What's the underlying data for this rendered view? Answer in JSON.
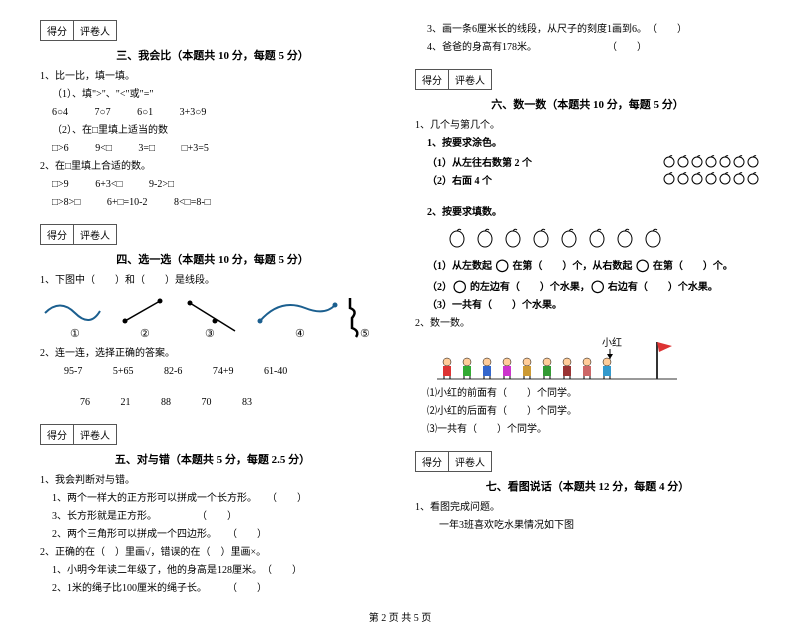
{
  "scoreLabels": {
    "score": "得分",
    "grader": "评卷人"
  },
  "section3": {
    "title": "三、我会比（本题共 10 分，每题 5 分）",
    "q1": "1、比一比，填一填。",
    "q1a": "（1）、填\">\"、\"<\"或\"=\"",
    "r1a": "6○4",
    "r1b": "7○7",
    "r1c": "6○1",
    "r1d": "3+3○9",
    "q1b": "（2）、在□里填上适当的数",
    "r2a": "□>6",
    "r2b": "9<□",
    "r2c": "3=□",
    "r2d": "□+3=5",
    "q2": "2、在□里填上合适的数。",
    "r3a": "□>9",
    "r3b": "6+3<□",
    "r3c": "9-2>□",
    "r4a": "□>8>□",
    "r4b": "6+□=10-2",
    "r4c": "8<□=8-□"
  },
  "section4": {
    "title": "四、选一选（本题共 10 分，每题 5 分）",
    "q1": "1、下图中（　　）和（　　）是线段。",
    "labels": [
      "①",
      "②",
      "③",
      "④",
      "⑤"
    ],
    "q2": "2、连一连，选择正确的答案。",
    "top": [
      "95-7",
      "5+65",
      "82-6",
      "74+9",
      "61-40"
    ],
    "bot": [
      "76",
      "21",
      "88",
      "70",
      "83"
    ]
  },
  "section5": {
    "title": "五、对与错（本题共 5 分，每题 2.5 分）",
    "q1": "1、我会判断对与错。",
    "s1": "1、两个一样大的正方形可以拼成一个长方形。",
    "s2": "3、长方形就是正方形。",
    "s3": "2、两个三角形可以拼成一个四边形。",
    "q2": "2、正确的在（　）里画√，错误的在（　）里画×。",
    "s4": "1、小明今年读二年级了，他的身高是128厘米。",
    "s5": "2、1米的绳子比100厘米的绳子长。",
    "p": "（　　）"
  },
  "rightTop": {
    "s3": "3、画一条6厘米长的线段，从尺子的刻度1画到6。",
    "s4": "4、爸爸的身高有178米。",
    "p": "（　　）"
  },
  "section6": {
    "title": "六、数一数（本题共 10 分，每题 5 分）",
    "q1": "1、几个与第几个。",
    "h1": "1、按要求涂色。",
    "l1": "（1）从左往右数第 2 个",
    "l2": "（2）右面 4 个",
    "h2": "2、按要求填数。",
    "f1a": "（1）从左数起  ",
    "f1b": "  在第（　　）个，从右数起  ",
    "f1c": "  在第（　　）个。",
    "f2a": "（2）",
    "f2b": " 的左边有（　　）个水果，",
    "f2c": " 右边有（　　）个水果。",
    "f3": "（3）一共有（　　）个水果。",
    "q2": "2、数一数。",
    "k1": "⑴小红的前面有（　　）个同学。",
    "k2": "⑵小红的后面有（　　）个同学。",
    "k3": "⑶一共有（　　）个同学。",
    "xh": "小红"
  },
  "section7": {
    "title": "七、看图说话（本题共 12 分，每题 4 分）",
    "q1": "1、看图完成问题。",
    "s1": "一年3班喜欢吃水果情况如下图"
  },
  "footer": "第 2 页 共 5 页"
}
